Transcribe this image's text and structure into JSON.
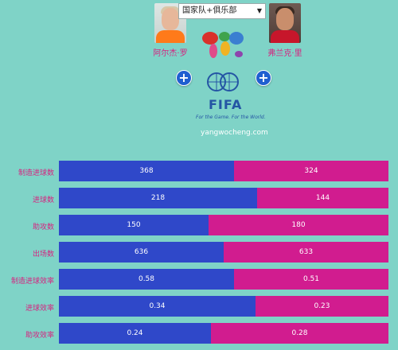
{
  "colors": {
    "background": "#7fd3c7",
    "left_bar": "#2f48c9",
    "right_bar": "#d11c8f",
    "label": "#d6237f"
  },
  "header": {
    "dropdown_value": "国家队+俱乐部",
    "left_player": {
      "name": "阿尔杰·罗"
    },
    "right_player": {
      "name": "弗兰克·里"
    },
    "add_icon": "plus-circle-icon",
    "fifa": {
      "logo_text": "FIFA",
      "slogan": "For the Game. For the World."
    },
    "site": "yangwocheng.com"
  },
  "stats": [
    {
      "label": "制造进球数",
      "left": "368",
      "right": "324",
      "left_value": 368,
      "right_value": 324
    },
    {
      "label": "进球数",
      "left": "218",
      "right": "144",
      "left_value": 218,
      "right_value": 144
    },
    {
      "label": "助攻数",
      "left": "150",
      "right": "180",
      "left_value": 150,
      "right_value": 180
    },
    {
      "label": "出场数",
      "left": "636",
      "right": "633",
      "left_value": 636,
      "right_value": 633
    },
    {
      "label": "制造进球效率",
      "left": "0.58",
      "right": "0.51",
      "left_value": 0.58,
      "right_value": 0.51
    },
    {
      "label": "进球效率",
      "left": "0.34",
      "right": "0.23",
      "left_value": 0.34,
      "right_value": 0.23
    },
    {
      "label": "助攻效率",
      "left": "0.24",
      "right": "0.28",
      "left_value": 0.24,
      "right_value": 0.28
    }
  ]
}
